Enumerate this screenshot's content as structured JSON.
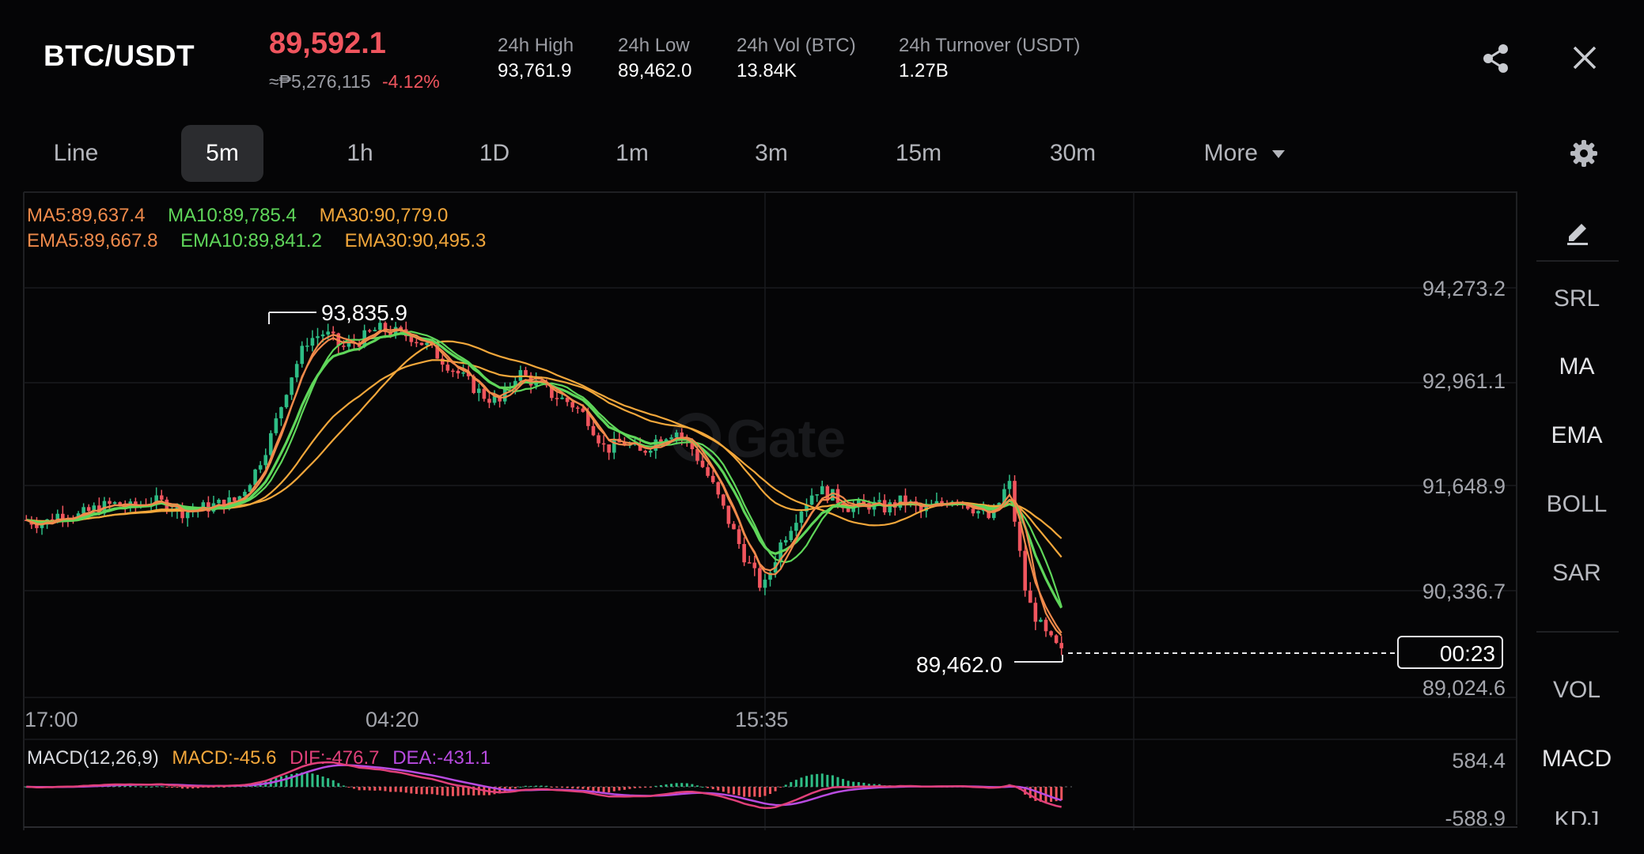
{
  "header": {
    "pair": "BTC/USDT",
    "last_price": "89,592.1",
    "fiat_price": "≈₱5,276,115",
    "change": "-4.12%",
    "stats": [
      {
        "label": "24h High",
        "value": "93,761.9"
      },
      {
        "label": "24h Low",
        "value": "89,462.0"
      },
      {
        "label": "24h Vol (BTC)",
        "value": "13.84K"
      },
      {
        "label": "24h Turnover (USDT)",
        "value": "1.27B"
      }
    ]
  },
  "tabs": [
    "Line",
    "5m",
    "1h",
    "1D",
    "1m",
    "3m",
    "15m",
    "30m"
  ],
  "active_tab": "5m",
  "more_label": "More",
  "indicators": {
    "ma5": "MA5:89,637.4",
    "ma10": "MA10:89,785.4",
    "ma30": "MA30:90,779.0",
    "ema5": "EMA5:89,667.8",
    "ema10": "EMA10:89,841.2",
    "ema30": "EMA30:90,495.3"
  },
  "macd": {
    "name": "MACD(12,26,9)",
    "macd": "MACD:-45.6",
    "dif": "DIF:-476.7",
    "dea": "DEA:-431.1",
    "y_top": "584.4",
    "y_bottom": "-588.9"
  },
  "side_panel": [
    "SRL",
    "MA",
    "EMA",
    "BOLL",
    "SAR",
    "VOL",
    "MACD"
  ],
  "side_partial": "KDJ",
  "countdown": "00:23",
  "watermark": "Gate",
  "colors": {
    "up": "#2ebd85",
    "down": "#f0555e",
    "ma5": "#f08a4b",
    "ma10": "#5fd65a",
    "ma30": "#f2a73b",
    "dif": "#e0407a",
    "dea": "#b84be0"
  },
  "chart_data": {
    "type": "candlestick",
    "interval": "5m",
    "x_ticks": [
      "17:00",
      "04:20",
      "15:35"
    ],
    "y_ticks": [
      "94,273.2",
      "92,961.1",
      "91,648.9",
      "90,336.7",
      "89,024.6"
    ],
    "ylim": [
      89024.6,
      94273.2
    ],
    "high_marker": "93,835.9",
    "low_marker": "89,462.0",
    "approx_close_path": [
      91300,
      91250,
      91400,
      91350,
      91450,
      91500,
      91450,
      91550,
      91500,
      91400,
      91450,
      91500,
      91550,
      91900,
      92400,
      93100,
      93600,
      93700,
      93500,
      93600,
      93750,
      93700,
      93650,
      93500,
      93300,
      93100,
      92900,
      92800,
      93200,
      93050,
      92900,
      92800,
      92600,
      92200,
      92300,
      92150,
      92350,
      92450,
      92200,
      91800,
      91300,
      90800,
      90400,
      91000,
      91400,
      91700,
      91600,
      91450,
      91500,
      91450,
      91550,
      91400,
      91500,
      91600,
      91450,
      91300,
      91800,
      90300,
      89850,
      89592
    ]
  }
}
